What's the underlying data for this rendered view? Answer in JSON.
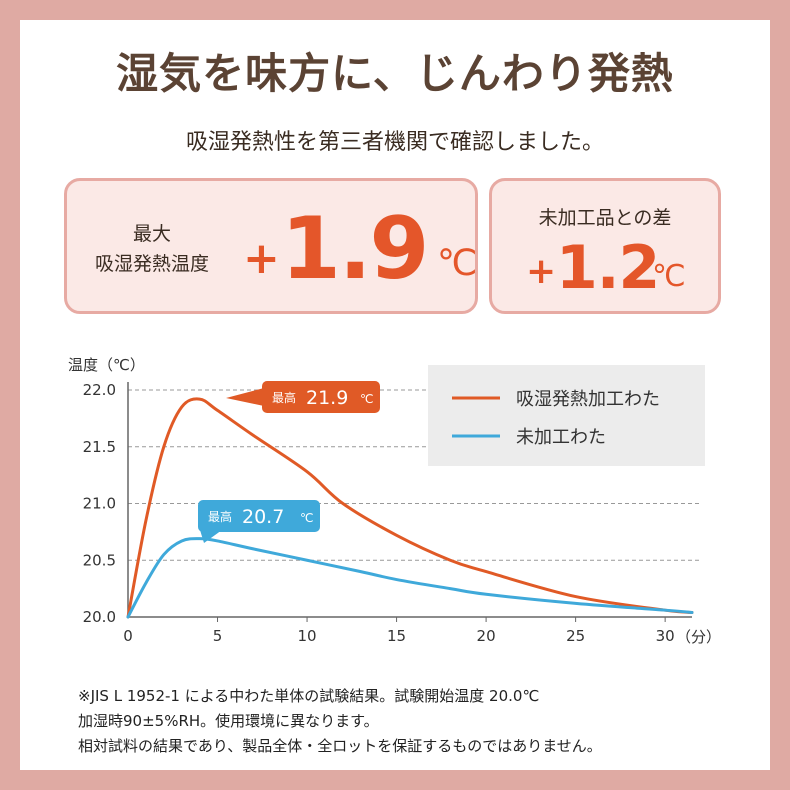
{
  "header": {
    "title": "湿気を味方に、じんわり発熱",
    "subtitle": "吸湿発熱性を第三者機関で確認しました。"
  },
  "highlights": {
    "max": {
      "label_line1": "最大",
      "label_line2": "吸湿発熱温度",
      "sign": "+",
      "value": "1.9",
      "unit": "℃"
    },
    "diff": {
      "label": "未加工品との差",
      "sign": "+",
      "value": "1.2",
      "unit": "℃"
    }
  },
  "colors": {
    "frame": "#dfaaa3",
    "box_fill": "#fbe9e6",
    "box_border": "#e7aaa3",
    "accent_orange": "#e4562a",
    "series_processed": "#e05a26",
    "series_unprocessed": "#3fa9da",
    "title": "#5b4334",
    "legend_bg": "#ececec"
  },
  "chart_data": {
    "type": "line",
    "ylabel": "温度（℃）",
    "xlabel": "",
    "x_unit_label": "（分）",
    "xlim": [
      0,
      31.5
    ],
    "ylim": [
      20.0,
      22.0
    ],
    "x_ticks": [
      0,
      5,
      10,
      15,
      20,
      25,
      30
    ],
    "y_ticks": [
      "20.0",
      "20.5",
      "21.0",
      "21.5",
      "22.0"
    ],
    "grid": "horizontal dashed",
    "legend_position": "top-right",
    "series": [
      {
        "name": "吸湿発熱加工わた",
        "color": "#e05a26",
        "points": [
          [
            0,
            20.0
          ],
          [
            1,
            20.85
          ],
          [
            2,
            21.5
          ],
          [
            3,
            21.85
          ],
          [
            4,
            21.92
          ],
          [
            5,
            21.82
          ],
          [
            7,
            21.6
          ],
          [
            10,
            21.28
          ],
          [
            12,
            21.0
          ],
          [
            15,
            20.72
          ],
          [
            18,
            20.5
          ],
          [
            20,
            20.4
          ],
          [
            25,
            20.18
          ],
          [
            30,
            20.06
          ],
          [
            31.5,
            20.04
          ]
        ],
        "peak_label": "最高",
        "peak_value": "21.9",
        "peak_unit": "℃",
        "peak_x": 4
      },
      {
        "name": "未加工わた",
        "color": "#3fa9da",
        "points": [
          [
            0,
            20.0
          ],
          [
            1,
            20.3
          ],
          [
            2,
            20.55
          ],
          [
            3,
            20.67
          ],
          [
            4,
            20.69
          ],
          [
            5,
            20.67
          ],
          [
            7,
            20.6
          ],
          [
            10,
            20.5
          ],
          [
            13,
            20.4
          ],
          [
            15,
            20.33
          ],
          [
            18,
            20.25
          ],
          [
            20,
            20.2
          ],
          [
            25,
            20.12
          ],
          [
            30,
            20.06
          ],
          [
            31.5,
            20.04
          ]
        ],
        "peak_label": "最高",
        "peak_value": "20.7",
        "peak_unit": "℃",
        "peak_x": 4
      }
    ]
  },
  "footnote": {
    "line1": "※JIS L 1952-1 による中わた単体の試験結果。試験開始温度 20.0℃",
    "line2": "加湿時90±5%RH。使用環境に異なります。",
    "line3": "相対試料の結果であり、製品全体・全ロットを保証するものではありません。"
  }
}
